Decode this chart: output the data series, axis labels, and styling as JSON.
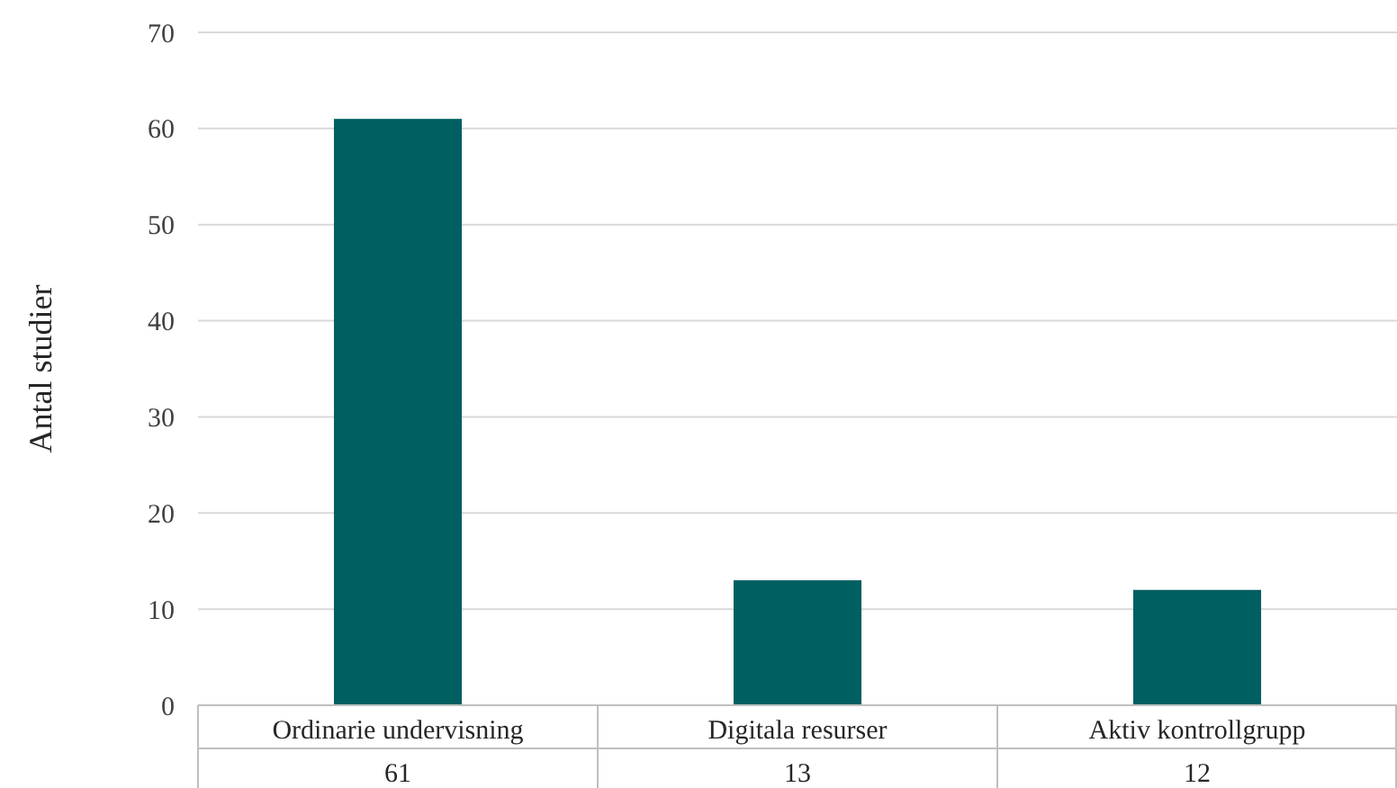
{
  "chart_data": {
    "type": "bar",
    "ylabel": "Antal studier",
    "categories": [
      "Ordinarie undervisning",
      "Digitala resurser",
      "Aktiv kontrollgrupp"
    ],
    "values": [
      61,
      13,
      12
    ],
    "color": "#005f60",
    "ylim": [
      0,
      70
    ],
    "yticks": [
      0,
      10,
      20,
      30,
      40,
      50,
      60,
      70
    ],
    "grid": "y",
    "data_labels": true
  }
}
